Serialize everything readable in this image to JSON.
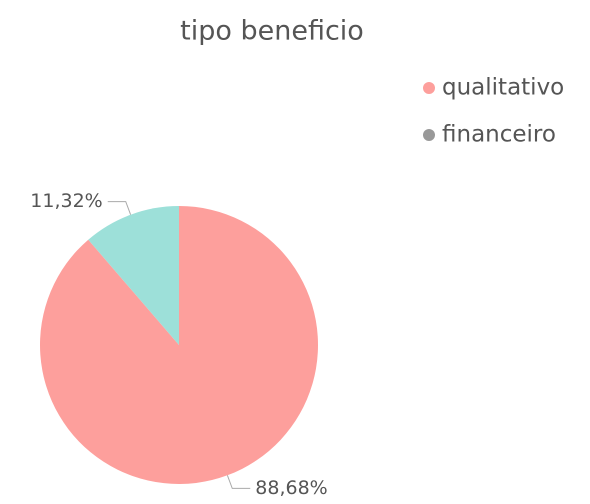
{
  "chart_data": {
    "type": "pie",
    "title": "tipo beneficio",
    "categories": [
      "qualitativo",
      "financeiro"
    ],
    "values": [
      88.68,
      11.32
    ],
    "value_labels": [
      "88,68%",
      "11,32%"
    ],
    "colors": [
      "#fd9f9c",
      "#9de0d9"
    ],
    "legend_colors": [
      "#fd9f9c",
      "#999999"
    ],
    "legend": "top-right"
  }
}
